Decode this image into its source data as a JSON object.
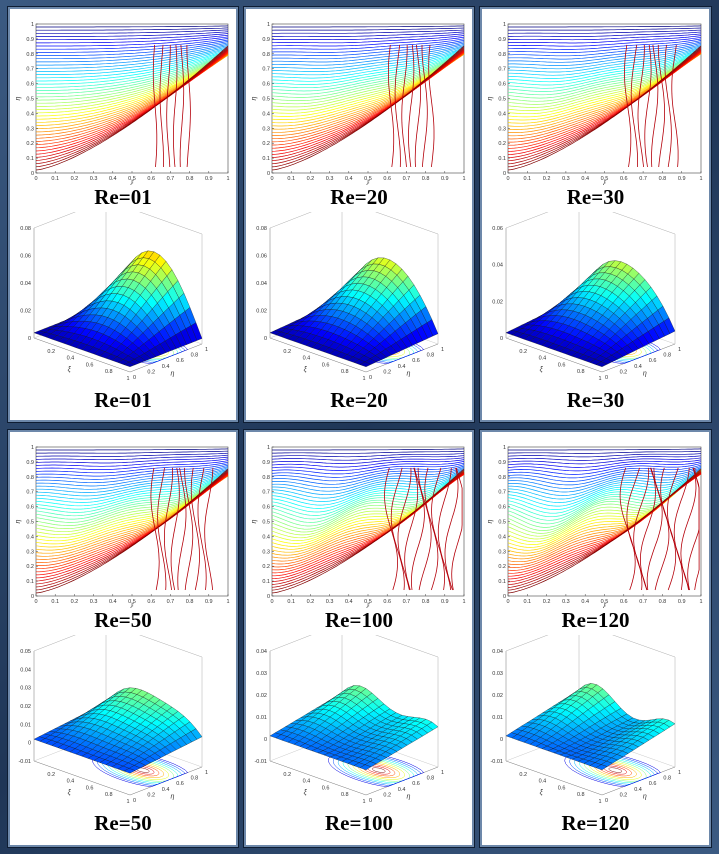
{
  "panels": [
    {
      "id": "p1",
      "contour_caption": "Re=01",
      "surface_caption": "Re=01",
      "reynolds": 1
    },
    {
      "id": "p2",
      "contour_caption": "Re=20",
      "surface_caption": "Re=20",
      "reynolds": 20
    },
    {
      "id": "p3",
      "contour_caption": "Re=30",
      "surface_caption": "Re=30",
      "reynolds": 30
    },
    {
      "id": "p4",
      "contour_caption": "Re=50",
      "surface_caption": "Re=50",
      "reynolds": 50
    },
    {
      "id": "p5",
      "contour_caption": "Re=100",
      "surface_caption": "Re=100",
      "reynolds": 100
    },
    {
      "id": "p6",
      "contour_caption": "Re=120",
      "surface_caption": "Re=120",
      "reynolds": 120
    }
  ],
  "chart_data": [
    {
      "type": "contour",
      "title": "Re=01",
      "xlabel": "ξ",
      "ylabel": "η",
      "xlim": [
        0,
        1
      ],
      "ylim": [
        0,
        1
      ],
      "xticks": [
        "0",
        "0.1",
        "0.2",
        "0.3",
        "0.4",
        "0.5",
        "0.6",
        "0.7",
        "0.8",
        "0.9",
        "1"
      ],
      "yticks": [
        "0",
        "0.1",
        "0.2",
        "0.3",
        "0.4",
        "0.5",
        "0.6",
        "0.7",
        "0.8",
        "0.9",
        "1"
      ]
    },
    {
      "type": "contour",
      "title": "Re=20",
      "xlabel": "ξ",
      "ylabel": "η",
      "xlim": [
        0,
        1
      ],
      "ylim": [
        0,
        1
      ],
      "xticks": [
        "0",
        "0.1",
        "0.2",
        "0.3",
        "0.4",
        "0.5",
        "0.6",
        "0.7",
        "0.8",
        "0.9",
        "1"
      ],
      "yticks": [
        "0",
        "0.1",
        "0.2",
        "0.3",
        "0.4",
        "0.5",
        "0.6",
        "0.7",
        "0.8",
        "0.9",
        "1"
      ]
    },
    {
      "type": "contour",
      "title": "Re=30",
      "xlabel": "ξ",
      "ylabel": "η",
      "xlim": [
        0,
        1
      ],
      "ylim": [
        0,
        1
      ],
      "xticks": [
        "0",
        "0.1",
        "0.2",
        "0.3",
        "0.4",
        "0.5",
        "0.6",
        "0.7",
        "0.8",
        "0.9",
        "1"
      ],
      "yticks": [
        "0",
        "0.1",
        "0.2",
        "0.3",
        "0.4",
        "0.5",
        "0.6",
        "0.7",
        "0.8",
        "0.9",
        "1"
      ]
    },
    {
      "type": "contour",
      "title": "Re=50",
      "xlabel": "ξ",
      "ylabel": "η",
      "xlim": [
        0,
        1
      ],
      "ylim": [
        0,
        1
      ],
      "xticks": [
        "0",
        "0.1",
        "0.2",
        "0.3",
        "0.4",
        "0.5",
        "0.6",
        "0.7",
        "0.8",
        "0.9",
        "1"
      ],
      "yticks": [
        "0",
        "0.1",
        "0.2",
        "0.3",
        "0.4",
        "0.5",
        "0.6",
        "0.7",
        "0.8",
        "0.9",
        "1"
      ]
    },
    {
      "type": "contour",
      "title": "Re=100",
      "xlabel": "ξ",
      "ylabel": "η",
      "xlim": [
        0,
        1
      ],
      "ylim": [
        0,
        1
      ],
      "xticks": [
        "0",
        "0.1",
        "0.2",
        "0.3",
        "0.4",
        "0.5",
        "0.6",
        "0.7",
        "0.8",
        "0.9",
        "1"
      ],
      "yticks": [
        "0",
        "0.1",
        "0.2",
        "0.3",
        "0.4",
        "0.5",
        "0.6",
        "0.7",
        "0.8",
        "0.9",
        "1"
      ]
    },
    {
      "type": "contour",
      "title": "Re=120",
      "xlabel": "ξ",
      "ylabel": "η",
      "xlim": [
        0,
        1
      ],
      "ylim": [
        0,
        1
      ],
      "xticks": [
        "0",
        "0.1",
        "0.2",
        "0.3",
        "0.4",
        "0.5",
        "0.6",
        "0.7",
        "0.8",
        "0.9",
        "1"
      ],
      "yticks": [
        "0",
        "0.1",
        "0.2",
        "0.3",
        "0.4",
        "0.5",
        "0.6",
        "0.7",
        "0.8",
        "0.9",
        "1"
      ]
    },
    {
      "type": "surface",
      "title": "Re=01",
      "xlabel": "ξ",
      "ylabel": "η",
      "zlim": [
        0,
        0.08
      ],
      "zticks": [
        "0",
        "0.02",
        "0.04",
        "0.06",
        "0.08"
      ],
      "xticks": [
        "0.2",
        "0.4",
        "0.6",
        "0.8",
        "1"
      ],
      "yticks": [
        "0",
        "0.2",
        "0.4",
        "0.6",
        "0.8",
        "1"
      ]
    },
    {
      "type": "surface",
      "title": "Re=20",
      "xlabel": "ξ",
      "ylabel": "η",
      "zlim": [
        0,
        0.08
      ],
      "zticks": [
        "0",
        "0.02",
        "0.04",
        "0.06",
        "0.08"
      ],
      "xticks": [
        "0.2",
        "0.4",
        "0.6",
        "0.8",
        "1"
      ],
      "yticks": [
        "0",
        "0.2",
        "0.4",
        "0.6",
        "0.8",
        "1"
      ]
    },
    {
      "type": "surface",
      "title": "Re=30",
      "xlabel": "ξ",
      "ylabel": "η",
      "zlim": [
        0,
        0.06
      ],
      "zticks": [
        "0",
        "0.02",
        "0.04",
        "0.06"
      ],
      "xticks": [
        "0.2",
        "0.4",
        "0.6",
        "0.8",
        "1"
      ],
      "yticks": [
        "0",
        "0.2",
        "0.4",
        "0.6",
        "0.8",
        "1"
      ]
    },
    {
      "type": "surface",
      "title": "Re=50",
      "xlabel": "ξ",
      "ylabel": "η",
      "zlim": [
        -0.01,
        0.05
      ],
      "zticks": [
        "-0.01",
        "0",
        "0.01",
        "0.02",
        "0.03",
        "0.04",
        "0.05"
      ],
      "xticks": [
        "0.2",
        "0.4",
        "0.6",
        "0.8",
        "1"
      ],
      "yticks": [
        "0",
        "0.2",
        "0.4",
        "0.6",
        "0.8",
        "1"
      ]
    },
    {
      "type": "surface",
      "title": "Re=100",
      "xlabel": "ξ",
      "ylabel": "η",
      "zlim": [
        -0.01,
        0.04
      ],
      "zticks": [
        "-0.01",
        "0",
        "0.01",
        "0.02",
        "0.03",
        "0.04"
      ],
      "xticks": [
        "0.2",
        "0.4",
        "0.6",
        "0.8",
        "1"
      ],
      "yticks": [
        "0",
        "0.2",
        "0.4",
        "0.6",
        "0.8",
        "1"
      ]
    },
    {
      "type": "surface",
      "title": "Re=120",
      "xlabel": "ξ",
      "ylabel": "η",
      "zlim": [
        -0.01,
        0.04
      ],
      "zticks": [
        "-0.01",
        "0",
        "0.01",
        "0.02",
        "0.03",
        "0.04"
      ],
      "xticks": [
        "0.2",
        "0.4",
        "0.6",
        "0.8",
        "1"
      ],
      "yticks": [
        "0",
        "0.2",
        "0.4",
        "0.6",
        "0.8",
        "1"
      ]
    }
  ]
}
